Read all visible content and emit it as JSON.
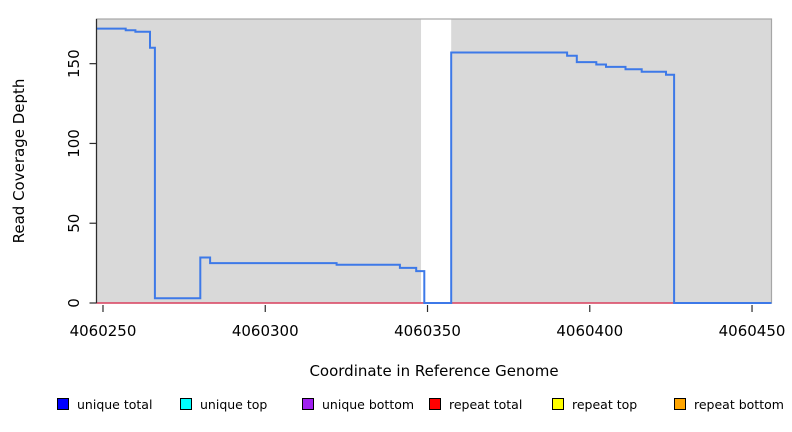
{
  "chart_data": {
    "type": "line",
    "title": "",
    "xlabel": "Coordinate in Reference Genome",
    "ylabel": "Read Coverage Depth",
    "xlim": [
      4060248,
      4060456
    ],
    "ylim": [
      0,
      178
    ],
    "x_ticks": [
      4060250,
      4060300,
      4060350,
      4060400,
      4060450
    ],
    "y_ticks": [
      0,
      50,
      100,
      150
    ],
    "grid": false,
    "plot_bg_color": "#d9d9d9",
    "plot_border_color": "#a6a6a6",
    "axis_color": "#2b2b2b",
    "gap_region": {
      "x_start": 4060348,
      "x_end": 4060357.3,
      "color": "#ffffff"
    },
    "series": [
      {
        "name": "repeat total coverage",
        "color": "#dd4462",
        "points": [
          [
            4060248,
            0
          ],
          [
            4060456,
            0
          ]
        ]
      },
      {
        "name": "unique total coverage",
        "color": "#3d79e8",
        "points": [
          [
            4060248,
            172
          ],
          [
            4060257,
            172
          ],
          [
            4060257,
            171
          ],
          [
            4060260,
            171
          ],
          [
            4060260,
            170
          ],
          [
            4060264.5,
            170
          ],
          [
            4060264.5,
            160
          ],
          [
            4060266,
            160
          ],
          [
            4060266,
            3
          ],
          [
            4060280,
            3
          ],
          [
            4060280,
            28.5
          ],
          [
            4060283,
            28.5
          ],
          [
            4060283,
            25
          ],
          [
            4060322,
            25
          ],
          [
            4060322,
            24
          ],
          [
            4060341.5,
            24
          ],
          [
            4060341.5,
            22
          ],
          [
            4060346.5,
            22
          ],
          [
            4060346.5,
            20
          ],
          [
            4060349,
            20
          ],
          [
            4060349,
            0
          ],
          [
            4060357.3,
            0
          ],
          [
            4060357.3,
            157
          ],
          [
            4060393,
            157
          ],
          [
            4060393,
            155
          ],
          [
            4060396,
            155
          ],
          [
            4060396,
            151
          ],
          [
            4060402,
            151
          ],
          [
            4060402,
            149.5
          ],
          [
            4060405,
            149.5
          ],
          [
            4060405,
            148
          ],
          [
            4060411,
            148
          ],
          [
            4060411,
            146.5
          ],
          [
            4060416,
            146.5
          ],
          [
            4060416,
            145
          ],
          [
            4060423.5,
            145
          ],
          [
            4060423.5,
            143
          ],
          [
            4060426,
            143
          ],
          [
            4060426,
            0
          ],
          [
            4060456,
            0
          ]
        ]
      }
    ],
    "legend": [
      {
        "label": "unique total",
        "color": "#0000ff"
      },
      {
        "label": "unique top",
        "color": "#00ffff"
      },
      {
        "label": "unique bottom",
        "color": "#a020f0"
      },
      {
        "label": "repeat total",
        "color": "#ff0000"
      },
      {
        "label": "repeat top",
        "color": "#ffff00"
      },
      {
        "label": "repeat bottom",
        "color": "#ffa500"
      }
    ],
    "legend_position": "bottom"
  }
}
